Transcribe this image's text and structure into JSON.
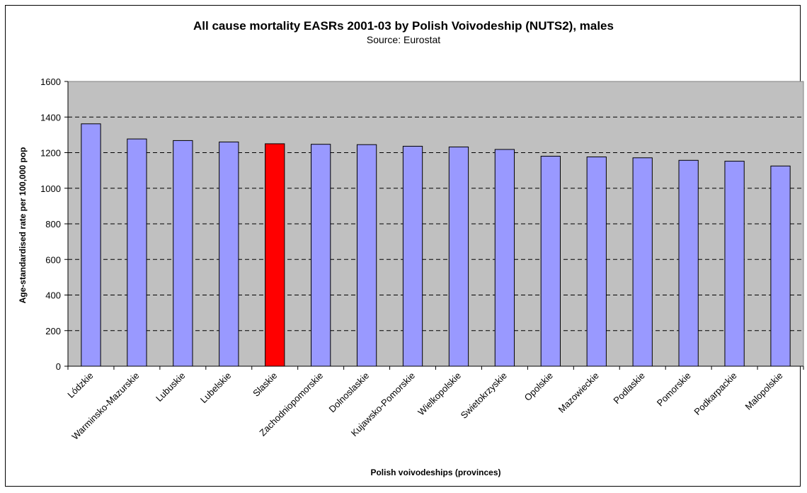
{
  "chart_data": {
    "type": "bar",
    "title": "All cause mortality EASRs 2001-03 by Polish Voivodeship (NUTS2), males",
    "subtitle": "Source: Eurostat",
    "xlabel": "Polish voivodeships (provinces)",
    "ylabel": "Age-standardised rate per 100,000 pop",
    "ylim": [
      0,
      1600
    ],
    "yticks": [
      0,
      200,
      400,
      600,
      800,
      1000,
      1200,
      1400,
      1600
    ],
    "categories": [
      "Lódzkie",
      "Warminsko-Mazurskie",
      "Lubuskie",
      "Lubelskie",
      "Slaskie",
      "Zachodniopomorskie",
      "Dolnoslaskie",
      "Kujawsko-Pomorskie",
      "Wielkopolskie",
      "Swietokrzyskie",
      "Opolskie",
      "Mazowieckie",
      "Podlaskie",
      "Pomorskie",
      "Podkarpackie",
      "Malopolskie"
    ],
    "values": [
      1362,
      1277,
      1268,
      1260,
      1250,
      1247,
      1245,
      1236,
      1232,
      1218,
      1180,
      1176,
      1171,
      1157,
      1152,
      1125
    ],
    "highlight": "Slaskie",
    "colors": {
      "bar": "#9999FF",
      "highlight": "#FF0000",
      "plot_bg": "#C0C0C0"
    },
    "grid": true
  }
}
